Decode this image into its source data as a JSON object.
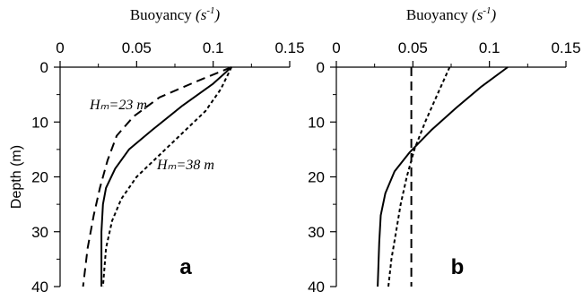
{
  "chart_data": [
    {
      "type": "line",
      "panel_label": "a",
      "xlabel": "Buoyancy",
      "xlabel_unit": "(s",
      "xlabel_unit_exp": "-1",
      "xlabel_unit_close": ")",
      "ylabel": "Depth (m)",
      "xlim": [
        0,
        0.15
      ],
      "ylim": [
        0,
        40
      ],
      "y_inverted": true,
      "x_ticks": [
        "0",
        "0.05",
        "0.1",
        "0.15"
      ],
      "y_ticks": [
        "0",
        "10",
        "20",
        "30",
        "40"
      ],
      "annotations": [
        "Hₘ=23 m",
        "Hₘ=38 m"
      ],
      "series": [
        {
          "style": "solid",
          "color": "#000000",
          "x": [
            0.112,
            0.1,
            0.08,
            0.06,
            0.045,
            0.036,
            0.03,
            0.028,
            0.027,
            0.027
          ],
          "y": [
            0,
            3,
            7,
            11.5,
            15,
            18.5,
            22,
            25,
            30,
            40
          ]
        },
        {
          "style": "dashed",
          "color": "#000000",
          "x": [
            0.112,
            0.09,
            0.065,
            0.048,
            0.037,
            0.031,
            0.026,
            0.022,
            0.018,
            0.015
          ],
          "y": [
            0,
            2.5,
            5.5,
            9,
            12.5,
            17,
            22,
            27,
            33,
            40
          ]
        },
        {
          "style": "dotted",
          "color": "#000000",
          "x": [
            0.112,
            0.105,
            0.095,
            0.08,
            0.065,
            0.05,
            0.04,
            0.034,
            0.03,
            0.028
          ],
          "y": [
            0,
            4,
            8,
            12,
            16,
            20,
            24,
            28,
            33,
            40
          ]
        }
      ]
    },
    {
      "type": "line",
      "panel_label": "b",
      "xlabel": "Buoyancy",
      "xlabel_unit": "(s",
      "xlabel_unit_exp": "-1",
      "xlabel_unit_close": ")",
      "xlim": [
        0,
        0.15
      ],
      "ylim": [
        0,
        40
      ],
      "y_inverted": true,
      "x_ticks": [
        "0",
        "0.05",
        "0.1",
        "0.15"
      ],
      "y_ticks": [
        "0",
        "10",
        "20",
        "30",
        "40"
      ],
      "series": [
        {
          "style": "solid",
          "color": "#000000",
          "x": [
            0.112,
            0.095,
            0.078,
            0.062,
            0.048,
            0.038,
            0.032,
            0.029,
            0.028,
            0.027
          ],
          "y": [
            0,
            3.5,
            7.5,
            11.5,
            15.5,
            19,
            23,
            27,
            32,
            40
          ]
        },
        {
          "style": "dashed",
          "color": "#000000",
          "x": [
            0.049,
            0.049
          ],
          "y": [
            0,
            40
          ]
        },
        {
          "style": "dotted",
          "color": "#000000",
          "x": [
            0.074,
            0.066,
            0.058,
            0.051,
            0.046,
            0.042,
            0.039,
            0.036,
            0.034
          ],
          "y": [
            0,
            5,
            10,
            15,
            20,
            25,
            30,
            35,
            40
          ]
        }
      ]
    }
  ]
}
